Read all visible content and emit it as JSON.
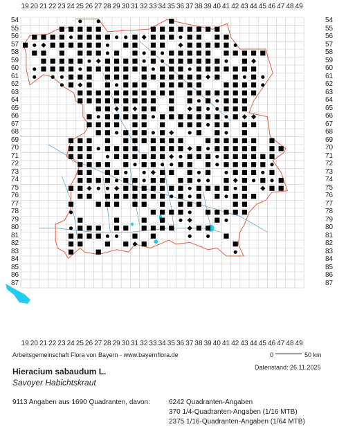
{
  "grid": {
    "columns": [
      "19",
      "20",
      "21",
      "22",
      "23",
      "24",
      "25",
      "26",
      "27",
      "28",
      "29",
      "30",
      "31",
      "32",
      "33",
      "34",
      "35",
      "36",
      "37",
      "38",
      "39",
      "40",
      "41",
      "42",
      "43",
      "44",
      "45",
      "46",
      "47",
      "48",
      "49"
    ],
    "rows": [
      "54",
      "55",
      "56",
      "57",
      "58",
      "59",
      "60",
      "61",
      "62",
      "63",
      "64",
      "65",
      "66",
      "67",
      "68",
      "69",
      "70",
      "71",
      "72",
      "73",
      "74",
      "75",
      "76",
      "77",
      "78",
      "79",
      "80",
      "81",
      "82",
      "83",
      "84",
      "85",
      "86",
      "87"
    ]
  },
  "credit": "Arbeitsgemeinschaft Flora von Bayern - www.bayernflora.de",
  "scale": {
    "start": "0",
    "end": "50 km"
  },
  "status_date": "Datenstand: 26.11.2025",
  "species": {
    "scientific": "Hieracium sabaudum L.",
    "common": "Savoyer Habichtskraut"
  },
  "stats": {
    "summary": "9113 Angaben aus 1690 Quadranten, davon:",
    "lines": [
      "6242 Quadranten-Angaben",
      "370 1/4-Quadranten-Angaben (1/16 MTB)",
      "2375 1/16-Quadranten-Angaben (1/64 MTB)"
    ]
  },
  "colors": {
    "grid": "#c8c8c8",
    "border": "#e06040",
    "river": "#6aa8d8",
    "lake": "#22ccee",
    "marker": "#000000"
  }
}
